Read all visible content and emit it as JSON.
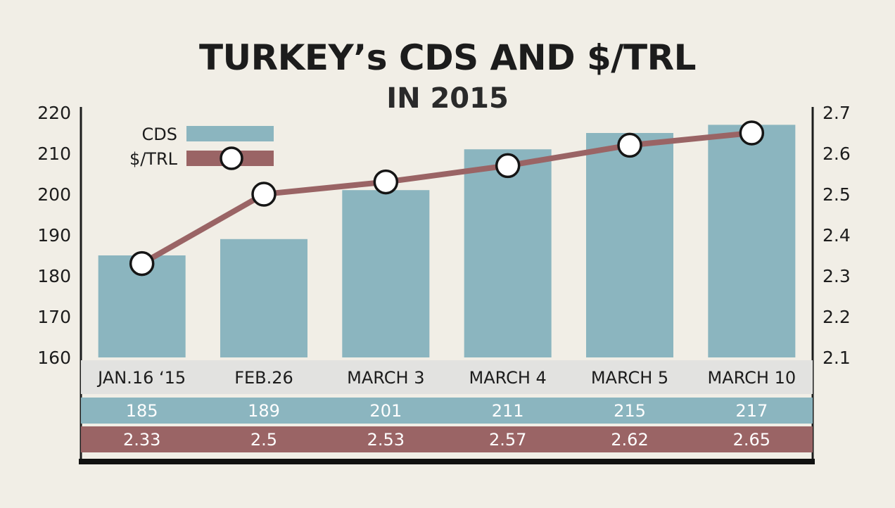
{
  "header": {
    "title": "TURKEY’s CDS AND $/TRL",
    "subtitle": "IN 2015"
  },
  "colors": {
    "cds": "#8bb5bf",
    "usdtrl": "#9a6465",
    "axis": "#1c1c1c",
    "category_band": "#e2e2e0",
    "background": "#f1eee6"
  },
  "chart_data": {
    "type": "bar",
    "title": "TURKEY’s CDS AND $/TRL",
    "subtitle": "IN 2015",
    "categories": [
      "JAN.16 ‘15",
      "FEB.26",
      "MARCH 3",
      "MARCH 4",
      "MARCH 5",
      "MARCH 10"
    ],
    "series": [
      {
        "name": "CDS",
        "type": "bar",
        "axis": "left",
        "values": [
          185,
          189,
          201,
          211,
          215,
          217
        ],
        "value_labels": [
          "185",
          "189",
          "201",
          "211",
          "215",
          "217"
        ]
      },
      {
        "name": "$/TRL",
        "type": "line",
        "axis": "right",
        "values": [
          2.33,
          2.5,
          2.53,
          2.57,
          2.62,
          2.65
        ],
        "value_labels": [
          "2.33",
          "2.5",
          "2.53",
          "2.57",
          "2.62",
          "2.65"
        ]
      }
    ],
    "y_left": {
      "ticks": [
        "160",
        "170",
        "180",
        "190",
        "200",
        "210",
        "220"
      ],
      "ylim": [
        160,
        220
      ]
    },
    "y_right": {
      "ticks": [
        "2.1",
        "2.2",
        "2.3",
        "2.4",
        "2.5",
        "2.6",
        "2.7"
      ],
      "ylim": [
        2.1,
        2.7
      ]
    },
    "legend": {
      "position": "top-left",
      "items": [
        "CDS",
        "$/TRL"
      ]
    },
    "grid": false
  }
}
